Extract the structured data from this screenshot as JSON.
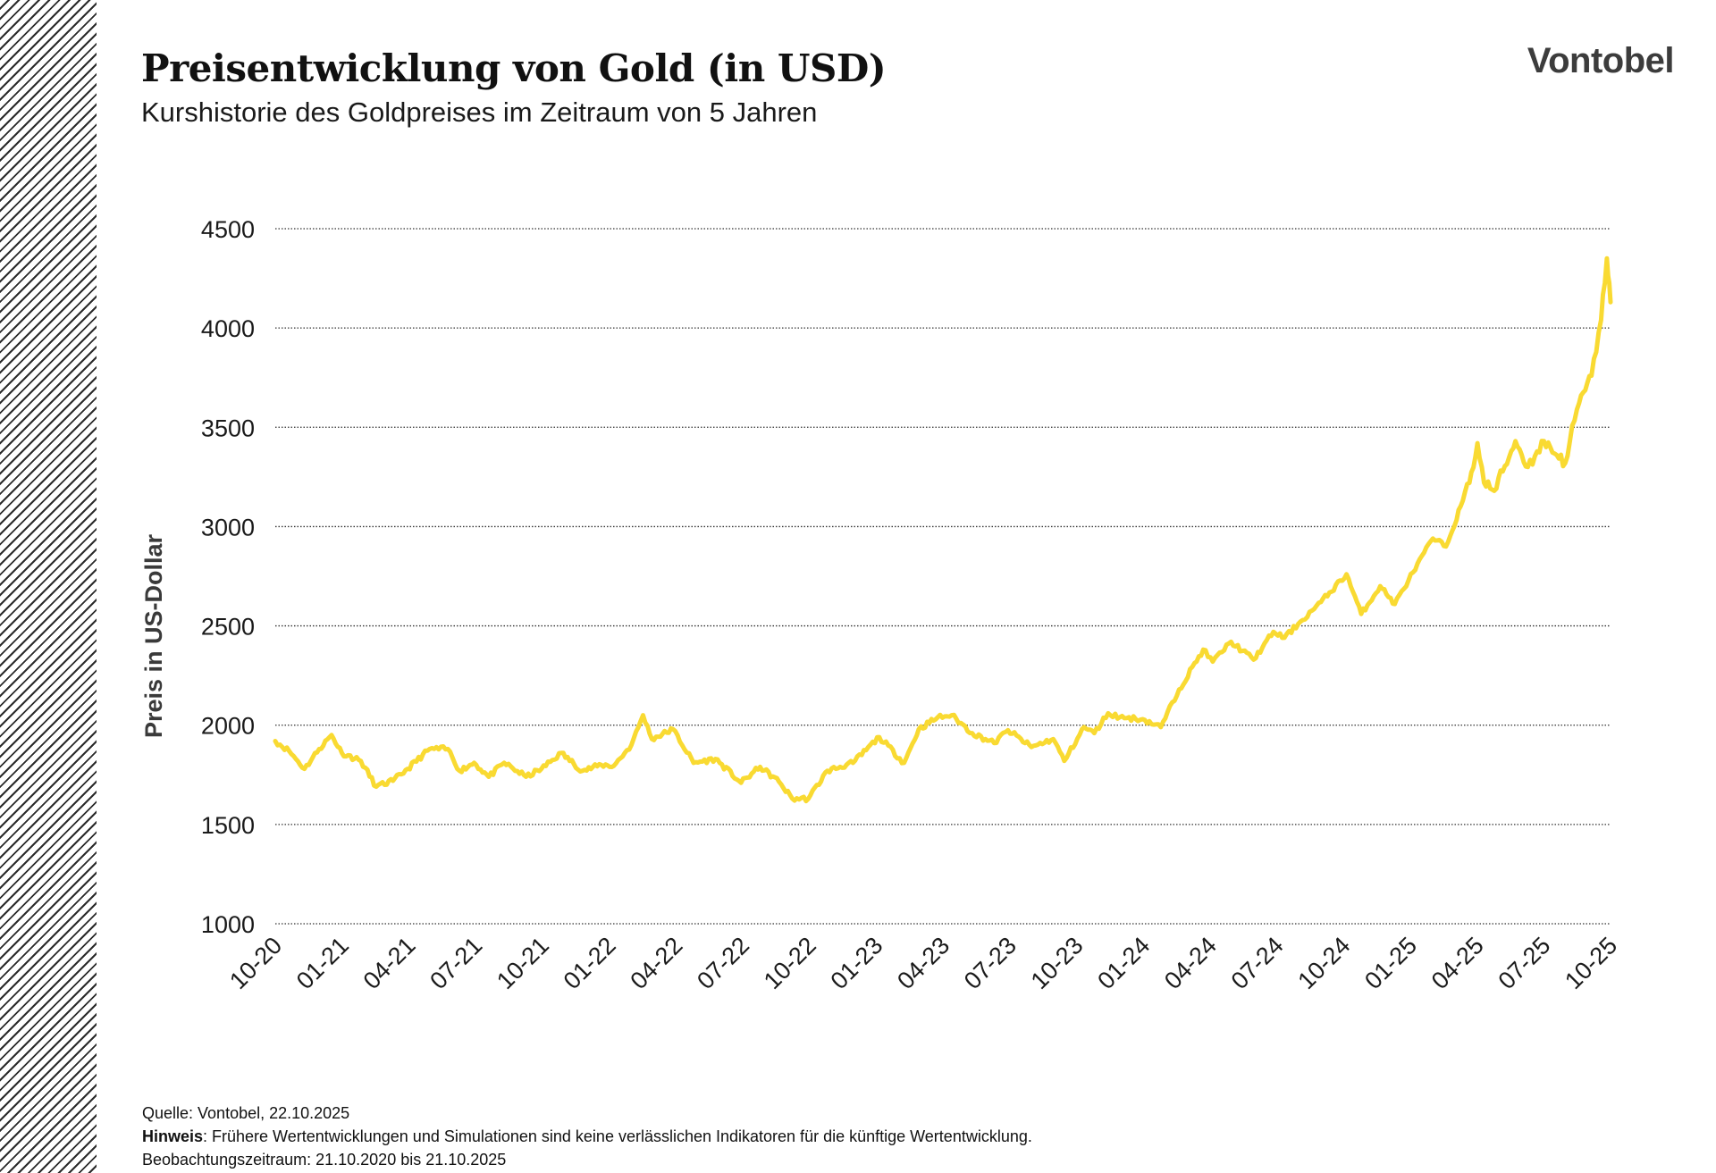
{
  "title": "Preisentwicklung von Gold (in USD)",
  "subtitle": "Kurshistorie des Goldpreises im Zeitraum von 5 Jahren",
  "brand": "Vontobel",
  "colors": {
    "line": "#F9DA32",
    "grid": "#333333",
    "text": "#1a1a1a",
    "stripes": "#2b2b2b"
  },
  "footer": {
    "source": "Quelle: Vontobel, 22.10.2025",
    "note_label": "Hinweis",
    "note_text": ": Frühere Wertentwicklungen und Simulationen sind keine verlässlichen Indikatoren für die künftige Wertentwicklung.",
    "period": "Beobachtungszeitraum: 21.10.2020 bis 21.10.2025"
  },
  "chart_data": {
    "type": "line",
    "ylabel": "Preis in US-Dollar",
    "ylim": [
      1000,
      4500
    ],
    "yticks": [
      1000,
      1500,
      2000,
      2500,
      3000,
      3500,
      4000,
      4500
    ],
    "x_tick_labels": [
      "10-20",
      "01-21",
      "04-21",
      "07-21",
      "10-21",
      "01-22",
      "04-22",
      "07-22",
      "10-22",
      "01-23",
      "04-23",
      "07-23",
      "10-23",
      "01-24",
      "04-24",
      "07-24",
      "10-24",
      "01-25",
      "04-25",
      "07-25",
      "10-25"
    ],
    "grid": "horizontal dotted",
    "series": [
      {
        "values": [
          [
            "2020-10-21",
            1920
          ],
          [
            "2020-11-09",
            1870
          ],
          [
            "2020-11-30",
            1780
          ],
          [
            "2020-12-20",
            1880
          ],
          [
            "2021-01-06",
            1950
          ],
          [
            "2021-01-20",
            1860
          ],
          [
            "2021-02-15",
            1820
          ],
          [
            "2021-03-08",
            1690
          ],
          [
            "2021-03-31",
            1720
          ],
          [
            "2021-04-20",
            1780
          ],
          [
            "2021-05-20",
            1880
          ],
          [
            "2021-06-14",
            1880
          ],
          [
            "2021-06-30",
            1770
          ],
          [
            "2021-07-20",
            1810
          ],
          [
            "2021-08-09",
            1740
          ],
          [
            "2021-08-30",
            1810
          ],
          [
            "2021-09-29",
            1740
          ],
          [
            "2021-10-20",
            1780
          ],
          [
            "2021-11-16",
            1860
          ],
          [
            "2021-12-15",
            1770
          ],
          [
            "2022-01-10",
            1800
          ],
          [
            "2022-01-27",
            1795
          ],
          [
            "2022-02-20",
            1900
          ],
          [
            "2022-03-08",
            2050
          ],
          [
            "2022-03-20",
            1930
          ],
          [
            "2022-04-18",
            1980
          ],
          [
            "2022-05-16",
            1810
          ],
          [
            "2022-06-15",
            1830
          ],
          [
            "2022-07-20",
            1710
          ],
          [
            "2022-08-15",
            1790
          ],
          [
            "2022-09-10",
            1715
          ],
          [
            "2022-09-28",
            1630
          ],
          [
            "2022-10-20",
            1630
          ],
          [
            "2022-11-15",
            1770
          ],
          [
            "2022-12-20",
            1810
          ],
          [
            "2023-01-25",
            1940
          ],
          [
            "2023-02-28",
            1810
          ],
          [
            "2023-03-20",
            1980
          ],
          [
            "2023-04-15",
            2040
          ],
          [
            "2023-05-04",
            2050
          ],
          [
            "2023-06-01",
            1960
          ],
          [
            "2023-07-01",
            1910
          ],
          [
            "2023-07-20",
            1975
          ],
          [
            "2023-08-21",
            1890
          ],
          [
            "2023-09-20",
            1930
          ],
          [
            "2023-10-05",
            1820
          ],
          [
            "2023-11-01",
            1990
          ],
          [
            "2023-11-15",
            1960
          ],
          [
            "2023-12-04",
            2060
          ],
          [
            "2023-12-20",
            2040
          ],
          [
            "2024-01-20",
            2030
          ],
          [
            "2024-02-14",
            1990
          ],
          [
            "2024-03-10",
            2180
          ],
          [
            "2024-04-12",
            2380
          ],
          [
            "2024-04-25",
            2320
          ],
          [
            "2024-05-20",
            2420
          ],
          [
            "2024-06-20",
            2330
          ],
          [
            "2024-07-17",
            2470
          ],
          [
            "2024-08-01",
            2440
          ],
          [
            "2024-08-20",
            2510
          ],
          [
            "2024-09-20",
            2620
          ],
          [
            "2024-10-25",
            2760
          ],
          [
            "2024-11-14",
            2560
          ],
          [
            "2024-12-10",
            2700
          ],
          [
            "2024-12-30",
            2610
          ],
          [
            "2025-01-24",
            2770
          ],
          [
            "2025-02-20",
            2940
          ],
          [
            "2025-03-10",
            2900
          ],
          [
            "2025-04-02",
            3130
          ],
          [
            "2025-04-11",
            3220
          ],
          [
            "2025-04-22",
            3420
          ],
          [
            "2025-05-01",
            3220
          ],
          [
            "2025-05-15",
            3180
          ],
          [
            "2025-06-13",
            3430
          ],
          [
            "2025-06-30",
            3300
          ],
          [
            "2025-07-22",
            3430
          ],
          [
            "2025-08-20",
            3320
          ],
          [
            "2025-09-05",
            3590
          ],
          [
            "2025-09-25",
            3760
          ],
          [
            "2025-10-08",
            4040
          ],
          [
            "2025-10-16",
            4350
          ],
          [
            "2025-10-21",
            4130
          ]
        ]
      }
    ]
  }
}
